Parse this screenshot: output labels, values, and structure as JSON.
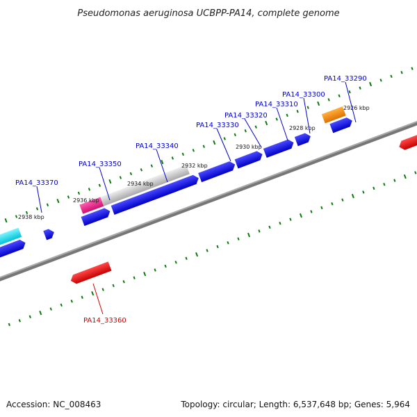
{
  "title": "Pseudomonas aeruginosa UCBPP-PA14, complete genome",
  "footer": {
    "accession": "Accession: NC_008463",
    "summary": "Topology: circular; Length: 6,537,648 bp; Genes: 5,964"
  },
  "colors": {
    "background": "#ffffff",
    "backbone": "#7a7a7a",
    "forward_gene": "#0000e6",
    "reverse_gene": "#e60000",
    "cyan_gene": "#00d8e8",
    "magenta_gene": "#e8208c",
    "gray_gene": "#bdbdbd",
    "orange_gene": "#f28a00",
    "tick": "#0a7a0a",
    "forward_label": "#0000cc",
    "reverse_label": "#cc0000"
  },
  "ticks": [
    {
      "label": "2926 kbp"
    },
    {
      "label": "2928 kbp"
    },
    {
      "label": "2930 kbp"
    },
    {
      "label": "2932 kbp"
    },
    {
      "label": "2934 kbp"
    },
    {
      "label": "2936 kbp"
    },
    {
      "label": "2938 kbp"
    }
  ],
  "genes": [
    {
      "name": "PA14_33290",
      "strand": "forward"
    },
    {
      "name": "PA14_33300",
      "strand": "forward"
    },
    {
      "name": "PA14_33310",
      "strand": "forward"
    },
    {
      "name": "PA14_33320",
      "strand": "forward"
    },
    {
      "name": "PA14_33330",
      "strand": "forward"
    },
    {
      "name": "PA14_33340",
      "strand": "forward"
    },
    {
      "name": "PA14_33350",
      "strand": "forward"
    },
    {
      "name": "PA14_33360",
      "strand": "reverse"
    },
    {
      "name": "PA14_33370",
      "strand": "forward"
    }
  ]
}
